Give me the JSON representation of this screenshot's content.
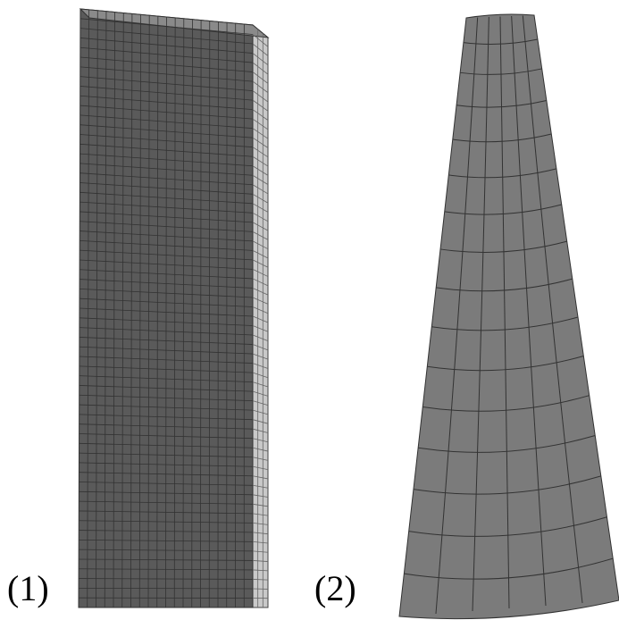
{
  "labels": [
    "(1)",
    "(2)"
  ]
}
